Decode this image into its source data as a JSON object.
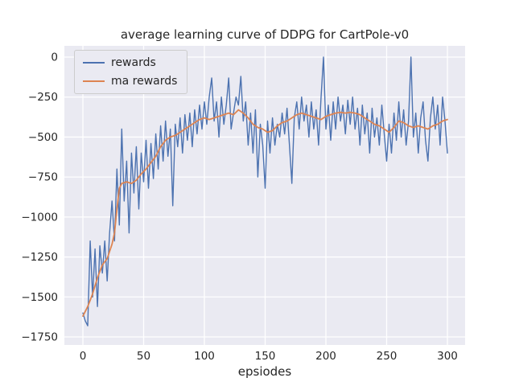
{
  "chart_data": {
    "type": "line",
    "title": "average learning curve of DDPG for CartPole-v0",
    "xlabel": "epsiodes",
    "ylabel": "",
    "x_range": [
      0,
      300
    ],
    "y_range": [
      -1750,
      0
    ],
    "xticks": [
      0,
      50,
      100,
      150,
      200,
      250,
      300
    ],
    "yticks": [
      0,
      -250,
      -500,
      -750,
      -1000,
      -1250,
      -1500,
      -1750
    ],
    "grid": true,
    "legend_position": "upper left",
    "colors": {
      "rewards": "#4C72B0",
      "ma_rewards": "#DD8452",
      "axes_bg": "#EAEAF2",
      "grid": "#FFFFFF",
      "text": "#262626"
    },
    "x": [
      0,
      2,
      4,
      6,
      8,
      10,
      12,
      14,
      16,
      18,
      20,
      22,
      24,
      26,
      28,
      30,
      32,
      34,
      36,
      38,
      40,
      42,
      44,
      46,
      48,
      50,
      52,
      54,
      56,
      58,
      60,
      62,
      64,
      66,
      68,
      70,
      72,
      74,
      76,
      78,
      80,
      82,
      84,
      86,
      88,
      90,
      92,
      94,
      96,
      98,
      100,
      102,
      104,
      106,
      108,
      110,
      112,
      114,
      116,
      118,
      120,
      122,
      124,
      126,
      128,
      130,
      132,
      134,
      136,
      138,
      140,
      142,
      144,
      146,
      148,
      150,
      152,
      154,
      156,
      158,
      160,
      162,
      164,
      166,
      168,
      170,
      172,
      174,
      176,
      178,
      180,
      182,
      184,
      186,
      188,
      190,
      192,
      194,
      196,
      198,
      200,
      202,
      204,
      206,
      208,
      210,
      212,
      214,
      216,
      218,
      220,
      222,
      224,
      226,
      228,
      230,
      232,
      234,
      236,
      238,
      240,
      242,
      244,
      246,
      248,
      250,
      252,
      254,
      256,
      258,
      260,
      262,
      264,
      266,
      268,
      270,
      272,
      274,
      276,
      278,
      280,
      282,
      284,
      286,
      288,
      290,
      292,
      294,
      296,
      298,
      300
    ],
    "series": [
      {
        "name": "rewards",
        "values": [
          -1600,
          -1650,
          -1680,
          -1150,
          -1500,
          -1200,
          -1560,
          -1180,
          -1350,
          -1150,
          -1400,
          -1100,
          -900,
          -1150,
          -700,
          -1050,
          -450,
          -900,
          -650,
          -1100,
          -600,
          -850,
          -560,
          -950,
          -600,
          -780,
          -520,
          -820,
          -540,
          -760,
          -480,
          -700,
          -430,
          -650,
          -400,
          -620,
          -450,
          -930,
          -420,
          -560,
          -380,
          -600,
          -360,
          -520,
          -350,
          -560,
          -330,
          -480,
          -300,
          -450,
          -280,
          -420,
          -250,
          -130,
          -400,
          -280,
          -500,
          -250,
          -420,
          -300,
          -130,
          -450,
          -350,
          -250,
          -300,
          -120,
          -400,
          -280,
          -550,
          -350,
          -600,
          -330,
          -750,
          -420,
          -550,
          -820,
          -400,
          -600,
          -380,
          -550,
          -420,
          -500,
          -350,
          -480,
          -320,
          -550,
          -790,
          -380,
          -280,
          -450,
          -250,
          -400,
          -300,
          -500,
          -280,
          -450,
          -330,
          -550,
          -250,
          0,
          -450,
          -300,
          -520,
          -280,
          -450,
          -250,
          -400,
          -300,
          -480,
          -270,
          -420,
          -250,
          -450,
          -320,
          -550,
          -300,
          -480,
          -350,
          -600,
          -320,
          -500,
          -380,
          -550,
          -300,
          -480,
          -650,
          -420,
          -600,
          -350,
          -520,
          -280,
          -500,
          -330,
          -550,
          -400,
          0,
          -500,
          -350,
          -600,
          -380,
          -280,
          -520,
          -650,
          -380,
          -250,
          -450,
          -300,
          -550,
          -250,
          -400,
          -600
        ]
      },
      {
        "name": "ma rewards",
        "values": [
          -1620,
          -1590,
          -1560,
          -1520,
          -1480,
          -1430,
          -1380,
          -1340,
          -1300,
          -1280,
          -1260,
          -1215,
          -1170,
          -1100,
          -950,
          -820,
          -790,
          -785,
          -780,
          -785,
          -790,
          -780,
          -770,
          -750,
          -730,
          -715,
          -700,
          -680,
          -660,
          -640,
          -620,
          -590,
          -560,
          -540,
          -520,
          -510,
          -500,
          -495,
          -490,
          -480,
          -470,
          -460,
          -450,
          -440,
          -430,
          -420,
          -410,
          -400,
          -390,
          -385,
          -380,
          -385,
          -390,
          -385,
          -380,
          -375,
          -370,
          -365,
          -360,
          -355,
          -350,
          -355,
          -360,
          -345,
          -330,
          -340,
          -350,
          -365,
          -380,
          -400,
          -420,
          -430,
          -440,
          -445,
          -450,
          -460,
          -470,
          -465,
          -460,
          -445,
          -430,
          -420,
          -410,
          -405,
          -400,
          -390,
          -380,
          -370,
          -360,
          -355,
          -350,
          -355,
          -360,
          -365,
          -370,
          -375,
          -380,
          -385,
          -390,
          -380,
          -370,
          -365,
          -360,
          -355,
          -350,
          -348,
          -345,
          -348,
          -350,
          -348,
          -345,
          -348,
          -350,
          -355,
          -360,
          -370,
          -380,
          -390,
          -400,
          -410,
          -420,
          -425,
          -430,
          -440,
          -450,
          -460,
          -470,
          -455,
          -440,
          -420,
          -400,
          -405,
          -410,
          -420,
          -430,
          -435,
          -440,
          -435,
          -430,
          -435,
          -440,
          -445,
          -450,
          -440,
          -430,
          -425,
          -420,
          -410,
          -400,
          -395,
          -390
        ]
      }
    ]
  }
}
